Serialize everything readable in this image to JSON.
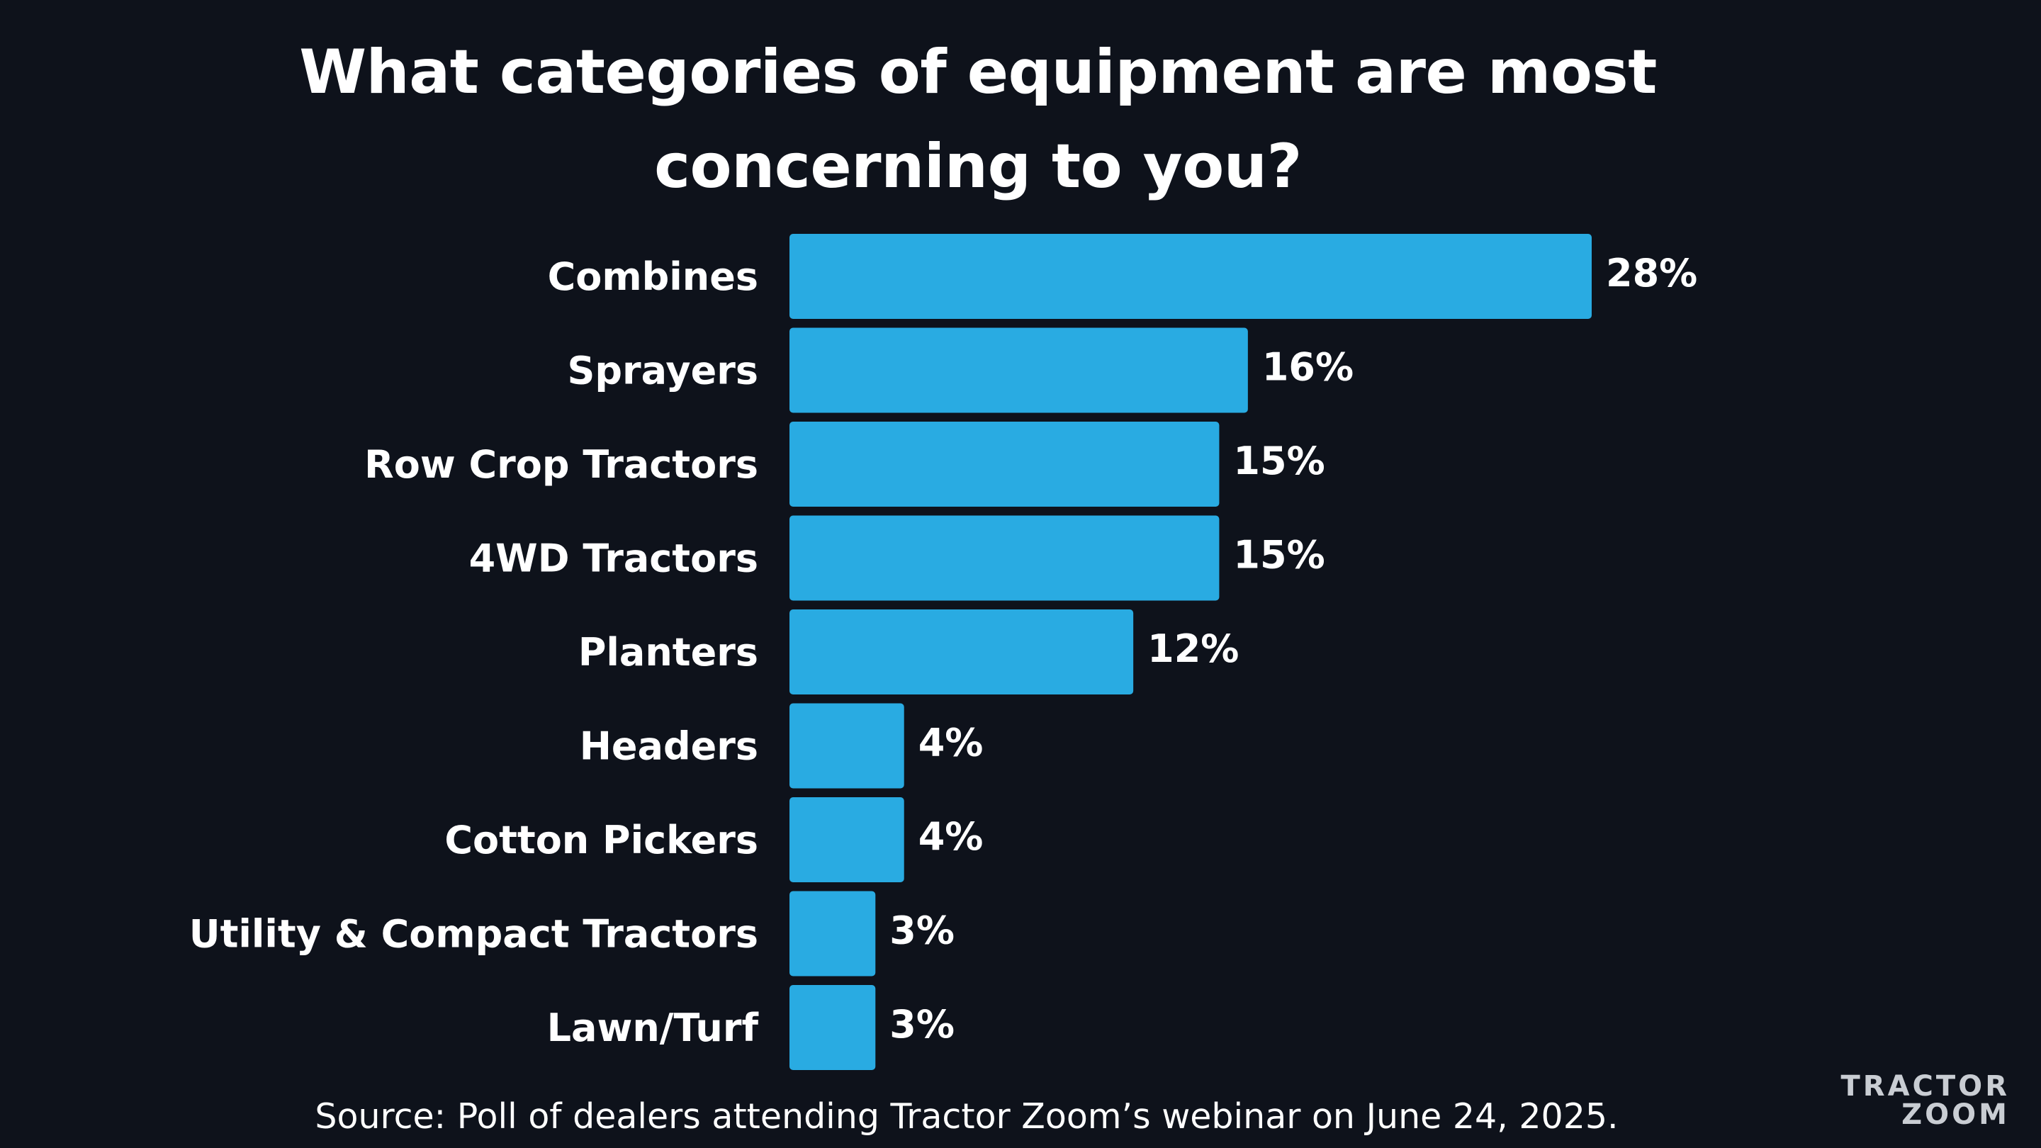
{
  "chart_data": {
    "type": "bar",
    "orientation": "horizontal",
    "title": "What categories of equipment are most concerning to you?",
    "categories": [
      "Combines",
      "Sprayers",
      "Row Crop Tractors",
      "4WD Tractors",
      "Planters",
      "Headers",
      "Cotton Pickers",
      "Utility & Compact Tractors",
      "Lawn/Turf"
    ],
    "values": [
      28,
      16,
      15,
      15,
      12,
      4,
      4,
      3,
      3
    ],
    "value_labels": [
      "28%",
      "16%",
      "15%",
      "15%",
      "12%",
      "4%",
      "4%",
      "3%",
      "3%"
    ],
    "unit": "%",
    "bar_color": "#29abe2",
    "xlim": [
      0,
      28
    ],
    "grid": false,
    "legend": "none"
  },
  "title_lines": [
    "What categories of equipment are most",
    "concerning to you?"
  ],
  "source": "Source: Poll of dealers attending Tractor Zoom’s webinar on June 24, 2025.",
  "logo": {
    "line1": "TRACTOR",
    "line2": "ZOOM",
    "accent_color": "#29a9e1"
  },
  "colors": {
    "background": "#0e121b",
    "text": "#ffffff"
  }
}
